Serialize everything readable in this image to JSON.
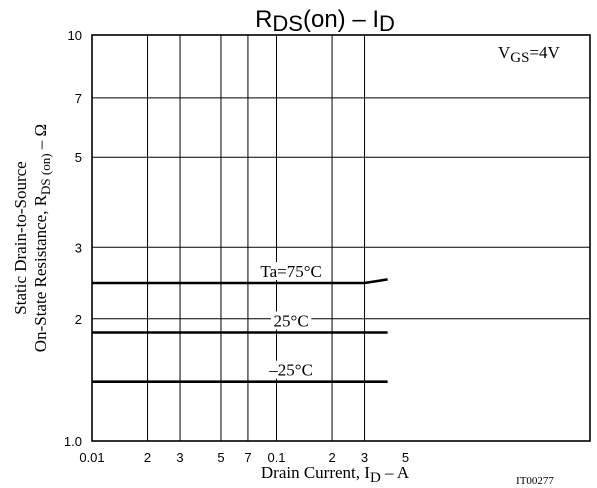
{
  "chart_data": {
    "type": "line",
    "title": {
      "main": "R",
      "sub1": "DS",
      "mid": "(on) – I",
      "sub2": "D"
    },
    "xlabel": {
      "main": "Drain Current, I",
      "sub": "D",
      "tail": " – A"
    },
    "ylabel": {
      "line1": "Static Drain-to-Source",
      "line2_main": "On-State Resistance, R",
      "line2_sub": "DS (on)",
      "line2_tail": " – Ω"
    },
    "annotation": {
      "main": "V",
      "sub": "GS",
      "tail": "=4V"
    },
    "figure_id": "IT00277",
    "x_scale": "log",
    "y_scale": "log",
    "xlim": [
      0.01,
      5
    ],
    "ylim": [
      1.0,
      10
    ],
    "x_tick_labels": [
      {
        "v": 0.01,
        "t": "0.01"
      },
      {
        "v": 0.02,
        "t": "2"
      },
      {
        "v": 0.03,
        "t": "3"
      },
      {
        "v": 0.05,
        "t": "5"
      },
      {
        "v": 0.07,
        "t": "7"
      },
      {
        "v": 0.1,
        "t": "0.1"
      },
      {
        "v": 0.2,
        "t": "2"
      },
      {
        "v": 0.3,
        "t": "3"
      },
      {
        "v": 0.5,
        "t": "5"
      }
    ],
    "y_tick_labels": [
      {
        "v": 1.0,
        "t": "1.0"
      },
      {
        "v": 2,
        "t": "2"
      },
      {
        "v": 3,
        "t": "3"
      },
      {
        "v": 5,
        "t": "5"
      },
      {
        "v": 7,
        "t": "7"
      },
      {
        "v": 10,
        "t": "10"
      }
    ],
    "x_gridlines": [
      0.02,
      0.03,
      0.05,
      0.07,
      0.1,
      0.2,
      0.3
    ],
    "y_gridlines": [
      2,
      3,
      5,
      7
    ],
    "grid": true,
    "series": [
      {
        "name": "Ta=75°C",
        "x": [
          0.01,
          0.3,
          0.4
        ],
        "y": [
          2.45,
          2.45,
          2.5
        ]
      },
      {
        "name": "25°C",
        "x": [
          0.01,
          0.4
        ],
        "y": [
          1.85,
          1.85
        ]
      },
      {
        "name": "–25°C",
        "x": [
          0.01,
          0.4
        ],
        "y": [
          1.4,
          1.4
        ]
      }
    ]
  }
}
